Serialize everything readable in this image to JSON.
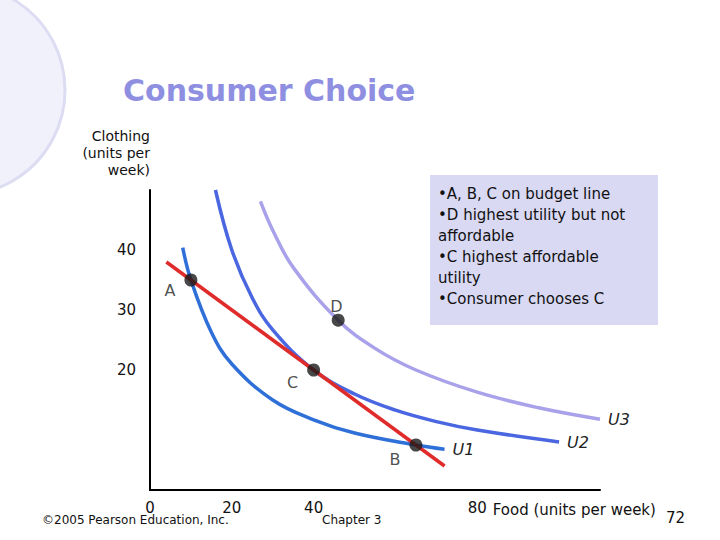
{
  "chart_data": {
    "type": "line",
    "title": "Consumer Choice",
    "x_label": "Food (units per week)",
    "y_label": "Clothing\n(units per\nweek)",
    "xlim": [
      0,
      110
    ],
    "ylim": [
      0,
      50
    ],
    "xticks": [
      0,
      20,
      40,
      80
    ],
    "yticks": [
      20,
      30,
      40
    ],
    "grid": false,
    "tick_labels": true,
    "series": [
      {
        "type": "line",
        "name": "U1",
        "color": "#2f6fd8",
        "marker": "none",
        "line_style": "solid",
        "x": [
          8,
          10,
          15,
          20,
          30,
          40,
          50,
          65,
          72
        ],
        "values": [
          40.4,
          35,
          26.3,
          21,
          15,
          11.7,
          9.5,
          7.5,
          6.8
        ]
      },
      {
        "type": "line",
        "name": "U2",
        "color": "#4a66e0",
        "marker": "none",
        "line_style": "solid",
        "x": [
          16,
          20,
          25,
          30,
          40,
          50,
          60,
          70,
          80,
          100
        ],
        "values": [
          50,
          40,
          32,
          26.7,
          20,
          16,
          13.3,
          11.4,
          10,
          8
        ]
      },
      {
        "type": "line",
        "name": "U3",
        "color": "#a9a2ea",
        "marker": "none",
        "line_style": "solid",
        "x": [
          27,
          30,
          35,
          46,
          55,
          65,
          80,
          95,
          110
        ],
        "values": [
          48.1,
          43.3,
          37.1,
          28.3,
          23.6,
          20,
          16.3,
          13.7,
          11.8
        ]
      },
      {
        "type": "line",
        "color": "#e02b2b",
        "marker": "none",
        "line_style": "solid",
        "x": [
          4,
          72
        ],
        "values": [
          38,
          4
        ]
      },
      {
        "type": "scatter",
        "color": "#1a1a1a",
        "marker": "circle",
        "x": [
          10,
          65,
          40,
          46
        ],
        "values": [
          35,
          7.5,
          20,
          28.3
        ],
        "labels": [
          "A",
          "B",
          "C",
          "D"
        ]
      }
    ],
    "annotations": [
      "•A, B, C on budget line",
      "•D highest utility but not affordable",
      "•C highest affordable utility",
      "•Consumer chooses C"
    ],
    "footer": {
      "copyright": "©2005 Pearson Education, Inc.",
      "chapter": "Chapter 3",
      "page": 72
    }
  }
}
